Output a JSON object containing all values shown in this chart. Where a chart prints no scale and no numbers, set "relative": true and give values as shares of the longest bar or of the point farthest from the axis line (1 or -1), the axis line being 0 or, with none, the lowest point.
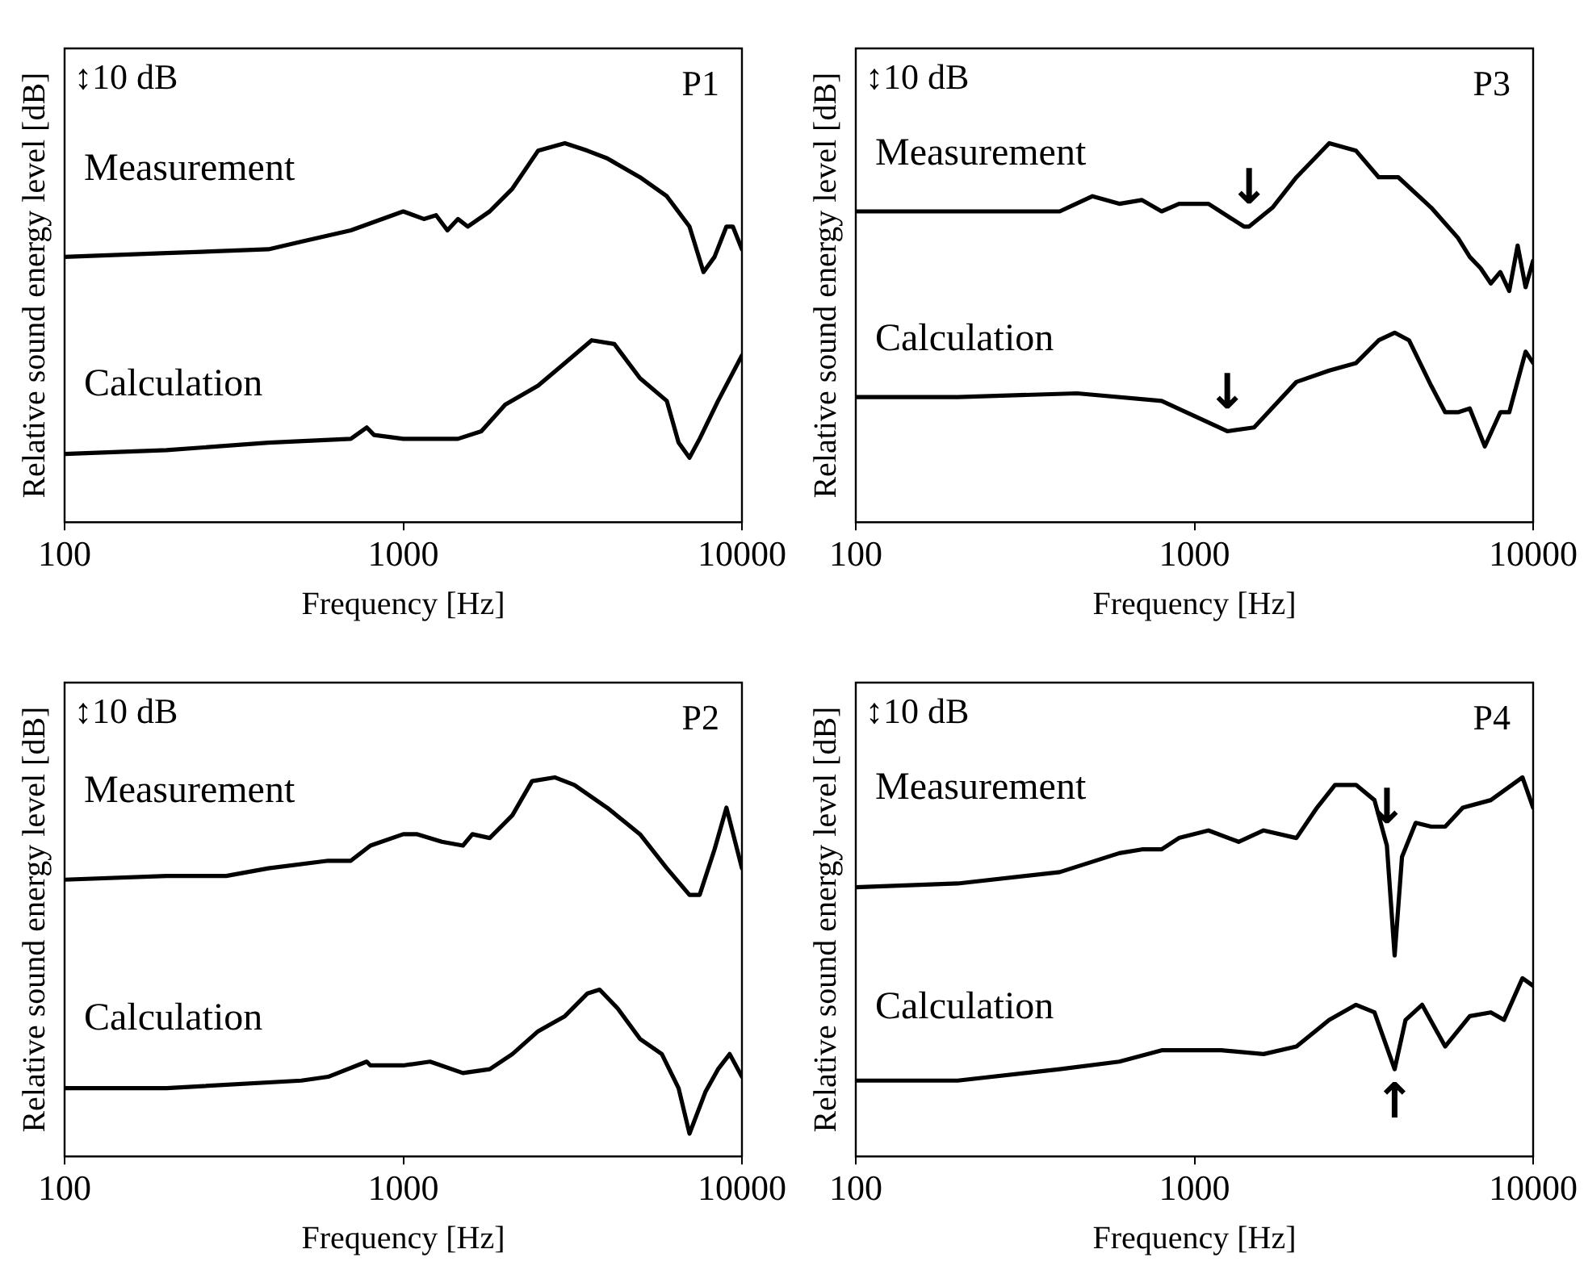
{
  "chart_data": [
    {
      "type": "line",
      "xlabel": "Frequency [Hz]",
      "ylabel": "Relative sound energy level [dB]",
      "log": "x",
      "xlim": [
        100,
        10000
      ],
      "xticks": [
        100,
        1000,
        10000
      ],
      "relative": true,
      "grid": false,
      "legend": false,
      "annotations": [
        "↕10 dB",
        "P1"
      ],
      "series": [
        {
          "name": "Measurement",
          "color": "#000000",
          "x": [
            100,
            200,
            400,
            500,
            700,
            1000,
            1150,
            1250,
            1350,
            1450,
            1550,
            1800,
            2100,
            2500,
            3000,
            3500,
            4000,
            5000,
            6000,
            7000,
            7700,
            8300,
            9000,
            9400,
            10000
          ],
          "values": [
            0.7,
            0.71,
            0.72,
            0.74,
            0.77,
            0.82,
            0.8,
            0.81,
            0.77,
            0.8,
            0.78,
            0.82,
            0.88,
            0.98,
            1.0,
            0.98,
            0.96,
            0.91,
            0.86,
            0.78,
            0.66,
            0.7,
            0.78,
            0.78,
            0.72
          ]
        },
        {
          "name": "Calculation",
          "color": "#000000",
          "x": [
            100,
            200,
            400,
            700,
            780,
            820,
            1000,
            1200,
            1450,
            1700,
            2000,
            2500,
            3000,
            3600,
            4200,
            5000,
            6000,
            6500,
            7000,
            7500,
            8500,
            10000
          ],
          "values": [
            0.18,
            0.19,
            0.21,
            0.22,
            0.25,
            0.23,
            0.22,
            0.22,
            0.22,
            0.24,
            0.31,
            0.36,
            0.42,
            0.48,
            0.47,
            0.38,
            0.32,
            0.21,
            0.17,
            0.22,
            0.32,
            0.44
          ]
        }
      ]
    },
    {
      "type": "line",
      "xlabel": "Frequency [Hz]",
      "ylabel": "Relative sound energy level [dB]",
      "log": "x",
      "xlim": [
        100,
        10000
      ],
      "xticks": [
        100,
        1000,
        10000
      ],
      "relative": true,
      "grid": false,
      "legend": false,
      "annotations": [
        "↕10 dB",
        "P3",
        {
          "text": "↓",
          "x": 1450,
          "y": 0.78
        },
        {
          "text": "↓",
          "x": 1250,
          "y": 0.24
        }
      ],
      "series": [
        {
          "name": "Measurement",
          "color": "#000000",
          "x": [
            100,
            200,
            400,
            500,
            600,
            700,
            800,
            900,
            1100,
            1400,
            1450,
            1700,
            2000,
            2500,
            3000,
            3500,
            4000,
            5000,
            6000,
            6500,
            7000,
            7500,
            8000,
            8500,
            9000,
            9500,
            10000
          ],
          "values": [
            0.82,
            0.82,
            0.82,
            0.86,
            0.84,
            0.85,
            0.82,
            0.84,
            0.84,
            0.78,
            0.78,
            0.83,
            0.91,
            1.0,
            0.98,
            0.91,
            0.91,
            0.83,
            0.75,
            0.7,
            0.67,
            0.63,
            0.66,
            0.61,
            0.73,
            0.62,
            0.69
          ]
        },
        {
          "name": "Calculation",
          "color": "#000000",
          "x": [
            100,
            200,
            450,
            800,
            1000,
            1250,
            1500,
            2000,
            2500,
            3000,
            3500,
            3900,
            4300,
            5000,
            5500,
            6000,
            6500,
            7200,
            8000,
            8500,
            9500,
            10000
          ],
          "values": [
            0.33,
            0.33,
            0.34,
            0.32,
            0.28,
            0.24,
            0.25,
            0.37,
            0.4,
            0.42,
            0.48,
            0.5,
            0.48,
            0.36,
            0.29,
            0.29,
            0.3,
            0.2,
            0.29,
            0.29,
            0.45,
            0.42
          ]
        }
      ]
    },
    {
      "type": "line",
      "xlabel": "Frequency [Hz]",
      "ylabel": "Relative sound energy level [dB]",
      "log": "x",
      "xlim": [
        100,
        10000
      ],
      "xticks": [
        100,
        1000,
        10000
      ],
      "relative": true,
      "grid": false,
      "legend": false,
      "annotations": [
        "↕10 dB",
        "P2"
      ],
      "series": [
        {
          "name": "Measurement",
          "color": "#000000",
          "x": [
            100,
            200,
            300,
            400,
            600,
            700,
            800,
            1000,
            1100,
            1300,
            1500,
            1600,
            1800,
            2100,
            2400,
            2800,
            3200,
            4000,
            5000,
            6000,
            7000,
            7500,
            8300,
            9000,
            10000
          ],
          "values": [
            0.73,
            0.74,
            0.74,
            0.76,
            0.78,
            0.78,
            0.82,
            0.85,
            0.85,
            0.83,
            0.82,
            0.85,
            0.84,
            0.9,
            0.99,
            1.0,
            0.98,
            0.92,
            0.85,
            0.76,
            0.69,
            0.69,
            0.81,
            0.92,
            0.76
          ]
        },
        {
          "name": "Calculation",
          "color": "#000000",
          "x": [
            100,
            200,
            500,
            600,
            780,
            800,
            1000,
            1200,
            1500,
            1800,
            2100,
            2500,
            3000,
            3500,
            3800,
            4300,
            5000,
            5800,
            6500,
            7000,
            7800,
            8500,
            9200,
            10000
          ],
          "values": [
            0.18,
            0.18,
            0.2,
            0.21,
            0.25,
            0.24,
            0.24,
            0.25,
            0.22,
            0.23,
            0.27,
            0.33,
            0.37,
            0.43,
            0.44,
            0.39,
            0.31,
            0.27,
            0.18,
            0.06,
            0.17,
            0.23,
            0.27,
            0.21
          ]
        }
      ]
    },
    {
      "type": "line",
      "xlabel": "Frequency [Hz]",
      "ylabel": "Relative sound energy level [dB]",
      "log": "x",
      "xlim": [
        100,
        10000
      ],
      "xticks": [
        100,
        1000,
        10000
      ],
      "relative": true,
      "grid": false,
      "legend": false,
      "annotations": [
        "↕10 dB",
        "P4",
        {
          "text": "↓",
          "x": 3700,
          "y": 0.82
        },
        {
          "text": "↑",
          "x": 3900,
          "y": 0.23
        }
      ],
      "series": [
        {
          "name": "Measurement",
          "color": "#000000",
          "x": [
            100,
            200,
            400,
            600,
            700,
            800,
            900,
            1100,
            1350,
            1600,
            2000,
            2300,
            2600,
            3000,
            3400,
            3700,
            3900,
            4100,
            4500,
            5000,
            5500,
            6200,
            7500,
            9300,
            10000
          ],
          "values": [
            0.71,
            0.72,
            0.75,
            0.8,
            0.81,
            0.81,
            0.84,
            0.86,
            0.83,
            0.86,
            0.84,
            0.92,
            0.98,
            0.98,
            0.94,
            0.82,
            0.53,
            0.79,
            0.88,
            0.87,
            0.87,
            0.92,
            0.94,
            1.0,
            0.92
          ]
        },
        {
          "name": "Calculation",
          "color": "#000000",
          "x": [
            100,
            200,
            400,
            600,
            800,
            1200,
            1600,
            2000,
            2500,
            3000,
            3400,
            3900,
            4200,
            4700,
            5500,
            6500,
            7500,
            8200,
            9300,
            10000
          ],
          "values": [
            0.2,
            0.2,
            0.23,
            0.25,
            0.28,
            0.28,
            0.27,
            0.29,
            0.36,
            0.4,
            0.38,
            0.23,
            0.36,
            0.4,
            0.29,
            0.37,
            0.38,
            0.36,
            0.47,
            0.45
          ]
        }
      ]
    }
  ]
}
